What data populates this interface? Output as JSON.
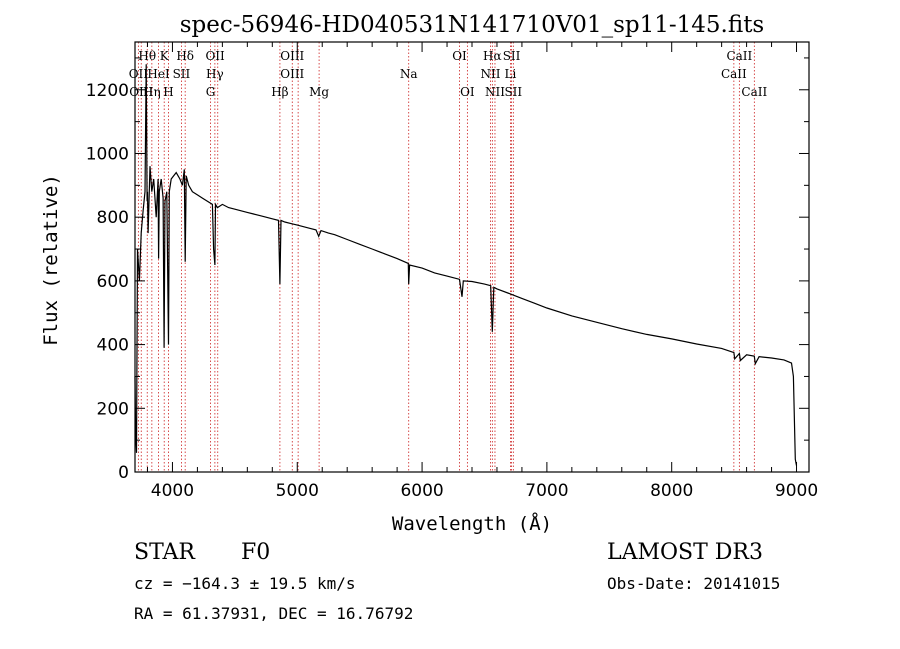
{
  "chart_data": {
    "type": "line",
    "title": "spec-56946-HD040531N141710V01_sp11-145.fits",
    "xlabel": "Wavelength (Å)",
    "ylabel": "Flux (relative)",
    "xlim": [
      3700,
      9100
    ],
    "ylim": [
      0,
      1350
    ],
    "xticks": [
      4000,
      5000,
      6000,
      7000,
      8000,
      9000
    ],
    "yticks": [
      0,
      200,
      400,
      600,
      800,
      1000,
      1200
    ],
    "series": [
      {
        "name": "flux",
        "x": [
          3700,
          3705,
          3712,
          3720,
          3735,
          3750,
          3765,
          3780,
          3790,
          3797,
          3800,
          3805,
          3820,
          3835,
          3850,
          3870,
          3885,
          3889,
          3895,
          3910,
          3925,
          3933,
          3940,
          3955,
          3968,
          3975,
          3990,
          4010,
          4030,
          4060,
          4080,
          4095,
          4102,
          4110,
          4130,
          4160,
          4200,
          4240,
          4280,
          4320,
          4330,
          4340,
          4345,
          4360,
          4400,
          4450,
          4500,
          4550,
          4600,
          4650,
          4700,
          4750,
          4800,
          4850,
          4861,
          4870,
          4900,
          4950,
          5000,
          5050,
          5100,
          5150,
          5172,
          5190,
          5250,
          5300,
          5400,
          5500,
          5600,
          5700,
          5800,
          5890,
          5893,
          5900,
          6000,
          6100,
          6200,
          6300,
          6320,
          6330,
          6400,
          6500,
          6550,
          6563,
          6575,
          6600,
          6700,
          6800,
          6900,
          7000,
          7200,
          7400,
          7600,
          7800,
          8000,
          8200,
          8400,
          8498,
          8505,
          8542,
          8550,
          8600,
          8662,
          8670,
          8700,
          8800,
          8900,
          8960,
          8975,
          8990,
          9000
        ],
        "values": [
          300,
          120,
          60,
          700,
          600,
          750,
          820,
          880,
          1280,
          850,
          880,
          750,
          960,
          880,
          920,
          800,
          920,
          670,
          880,
          920,
          860,
          390,
          850,
          880,
          400,
          880,
          920,
          930,
          940,
          920,
          900,
          950,
          660,
          930,
          900,
          880,
          870,
          860,
          850,
          840,
          700,
          650,
          840,
          830,
          840,
          830,
          825,
          820,
          815,
          810,
          805,
          800,
          795,
          790,
          590,
          790,
          785,
          780,
          775,
          770,
          765,
          760,
          740,
          758,
          750,
          745,
          730,
          715,
          700,
          685,
          670,
          655,
          590,
          650,
          640,
          625,
          615,
          605,
          550,
          600,
          598,
          590,
          585,
          440,
          580,
          575,
          560,
          545,
          530,
          515,
          490,
          470,
          450,
          432,
          418,
          402,
          388,
          375,
          355,
          372,
          350,
          368,
          364,
          340,
          362,
          358,
          352,
          342,
          300,
          40,
          20
        ]
      }
    ],
    "line_labels": [
      {
        "label": "Hθ",
        "wl": 3798,
        "row": 0
      },
      {
        "label": "K",
        "wl": 3934,
        "row": 0
      },
      {
        "label": "Hδ",
        "wl": 4102,
        "row": 0
      },
      {
        "label": "OII",
        "wl": 4342,
        "row": 0
      },
      {
        "label": "OIII",
        "wl": 4960,
        "row": 0
      },
      {
        "label": "OI",
        "wl": 6300,
        "row": 0
      },
      {
        "label": "Hα",
        "wl": 6563,
        "row": 0
      },
      {
        "label": "SII",
        "wl": 6717,
        "row": 0
      },
      {
        "label": "CaII",
        "wl": 8542,
        "row": 0
      },
      {
        "label": "OII",
        "wl": 3727,
        "row": 1
      },
      {
        "label": "HeI",
        "wl": 3889,
        "row": 1
      },
      {
        "label": "SII",
        "wl": 4072,
        "row": 1
      },
      {
        "label": "Hγ",
        "wl": 4340,
        "row": 1
      },
      {
        "label": "OIII",
        "wl": 4960,
        "row": 1
      },
      {
        "label": "Na",
        "wl": 5893,
        "row": 1
      },
      {
        "label": "NII",
        "wl": 6548,
        "row": 1
      },
      {
        "label": "Li",
        "wl": 6708,
        "row": 1
      },
      {
        "label": "CaII",
        "wl": 8498,
        "row": 1
      },
      {
        "label": "OIII",
        "wl": 3750,
        "row": 2
      },
      {
        "label": "Hη",
        "wl": 3835,
        "row": 2
      },
      {
        "label": "H",
        "wl": 3968,
        "row": 2
      },
      {
        "label": "G",
        "wl": 4305,
        "row": 2
      },
      {
        "label": "Hβ",
        "wl": 4861,
        "row": 2
      },
      {
        "label": "Mg",
        "wl": 5175,
        "row": 2
      },
      {
        "label": "OI",
        "wl": 6363,
        "row": 2
      },
      {
        "label": "NII",
        "wl": 6584,
        "row": 2
      },
      {
        "label": "SII",
        "wl": 6731,
        "row": 2
      },
      {
        "label": "CaII",
        "wl": 8662,
        "row": 2
      }
    ],
    "line_markers": [
      3727,
      3750,
      3798,
      3835,
      3889,
      3934,
      3968,
      4072,
      4102,
      4305,
      4340,
      4363,
      4861,
      4960,
      5007,
      5175,
      5893,
      6300,
      6363,
      6548,
      6563,
      6584,
      6708,
      6717,
      6731,
      8498,
      8542,
      8662
    ]
  },
  "info": {
    "object_class": "STAR",
    "subclass": "F0",
    "survey": "LAMOST DR3",
    "cz": "cz = −164.3 ± 19.5 km/s",
    "obs_date": "Obs-Date: 20141015",
    "coords": "RA =  61.37931, DEC =  16.76792"
  }
}
